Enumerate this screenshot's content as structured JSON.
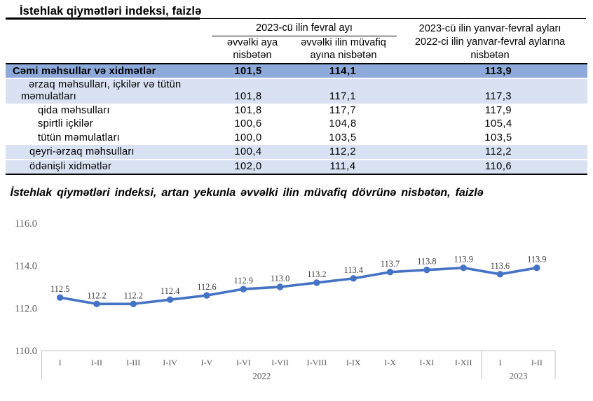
{
  "page_title": "İstehlak qiymətləri indeksi, faizlə",
  "table": {
    "header": {
      "group_february": "2023-cü ilin fevral ayı",
      "col_prev_month": "əvvəlki aya\nnisbətən",
      "col_prev_year_month": "əvvəlki ilin müvafiq\nayına nisbətən",
      "col_jan_feb": "2023-cü ilin yanvar-fevral ayları\n2022-ci ilin yanvar-fevral aylarına\nnisbətən"
    },
    "rows": [
      {
        "label": "Cəmi məhsullar və xidmətlər",
        "values": [
          "101,5",
          "114,1",
          "113,9"
        ],
        "style": "total"
      },
      {
        "label": "ərzaq məhsulları, içkilər və tütün\nməmulatları",
        "values": [
          "101,8",
          "117,1",
          "117,3"
        ],
        "style": "group",
        "two_line": true
      },
      {
        "label": "qida məhsulları",
        "values": [
          "101,8",
          "117,7",
          "117,9"
        ],
        "style": "sub"
      },
      {
        "label": "spirtli içkilər",
        "values": [
          "100,6",
          "104,8",
          "105,4"
        ],
        "style": "sub"
      },
      {
        "label": "tütün məmulatları",
        "values": [
          "100,0",
          "103,5",
          "103,5"
        ],
        "style": "sub"
      },
      {
        "label": "qeyri-ərzaq məhsulları",
        "values": [
          "100,4",
          "112,2",
          "112,2"
        ],
        "style": "group"
      },
      {
        "label": "ödənişli xidmətlər",
        "values": [
          "102,0",
          "111,4",
          "110,6"
        ],
        "style": "group"
      }
    ]
  },
  "chart_title": "İstehlak qiymətləri indeksi, artan yekunla əvvəlki ilin müvafiq dövrünə nisbətən, faizlə",
  "chart_data": {
    "type": "line",
    "categories": [
      "I",
      "I-II",
      "I-III",
      "I-IV",
      "I-V",
      "I-VI",
      "I-VII",
      "I-VIII",
      "I-IX",
      "I-X",
      "I-XI",
      "I-XII",
      "I",
      "I-II"
    ],
    "year_groups": [
      {
        "label": "2022",
        "count": 12
      },
      {
        "label": "2023",
        "count": 2
      }
    ],
    "values": [
      112.5,
      112.2,
      112.2,
      112.4,
      112.6,
      112.9,
      113.0,
      113.2,
      113.4,
      113.7,
      113.8,
      113.9,
      113.6,
      113.9
    ],
    "ylim": [
      110.0,
      116.0
    ],
    "ytick_labels": [
      "110.0",
      "112.0",
      "114.0",
      "116.0"
    ],
    "grid": false,
    "legend": "none",
    "line_color": "#4472c4",
    "marker": "circle",
    "data_label_color": "#404040",
    "axis_label_color": "#595959",
    "axis_line_color": "#bfbfbf"
  },
  "colors": {
    "total_row_bg": "#8eaadb",
    "group_row_bg": "#d9e2f3",
    "border_black": "#000000"
  }
}
